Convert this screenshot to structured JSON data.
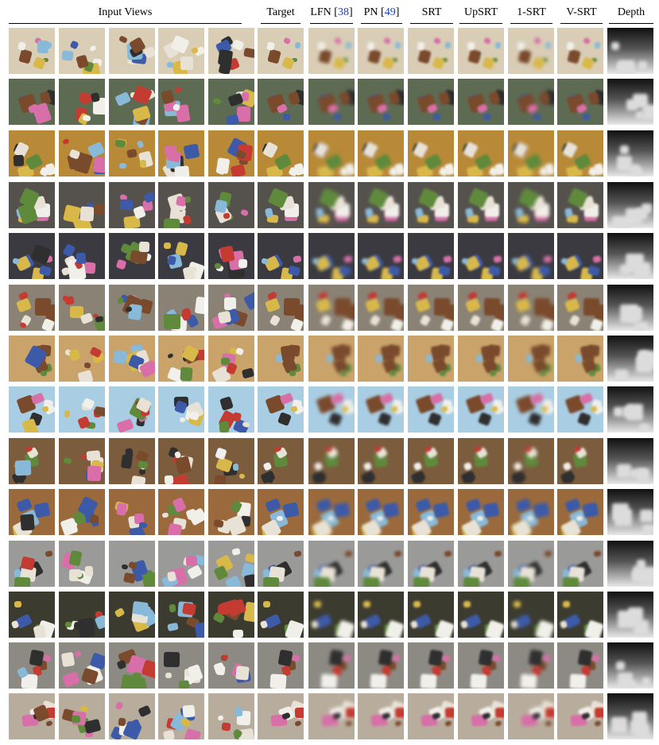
{
  "headers": [
    {
      "key": "input",
      "text": "Input Views"
    },
    {
      "key": "target",
      "text": "Target"
    },
    {
      "key": "lfn",
      "text": "LFN [",
      "ref": "38",
      "after": "]"
    },
    {
      "key": "pn",
      "text": "PN [",
      "ref": "49",
      "after": "]"
    },
    {
      "key": "srt",
      "text": "SRT"
    },
    {
      "key": "upsrt",
      "text": "UpSRT"
    },
    {
      "key": "1srt",
      "text": "1-SRT"
    },
    {
      "key": "vsrt",
      "text": "V-SRT"
    },
    {
      "key": "depth",
      "text": "Depth"
    }
  ],
  "colors": {
    "ref_link": "#1f3fb3",
    "row_backgrounds": [
      "#d9cdb6",
      "#5d6b52",
      "#b88937",
      "#55524e",
      "#3a3a40",
      "#8a8274",
      "#c9a36a",
      "#a9cde3",
      "#7b5c3d",
      "#9a6a3c",
      "#9a9a98",
      "#3c3b30",
      "#8d8a84",
      "#b8ad9c"
    ],
    "depth_far": "#111111",
    "depth_near": "#e8e8e8"
  }
}
